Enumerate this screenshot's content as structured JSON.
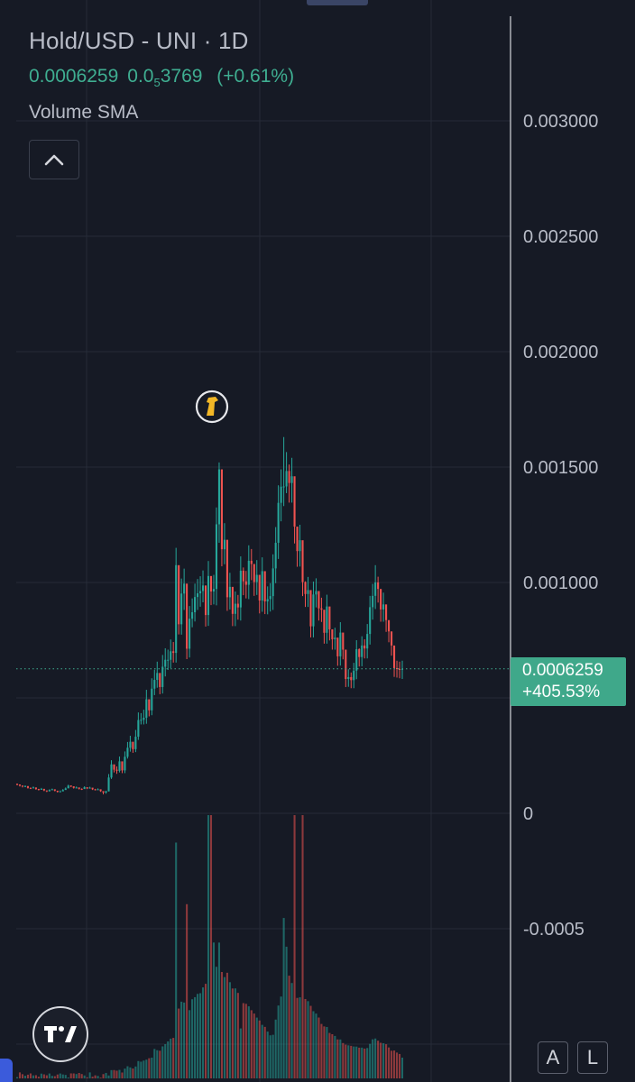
{
  "header": {
    "title": "Hold/USD - UNI · 1D",
    "price": "0.0006259",
    "change_main": "0.0",
    "change_sub": "5",
    "change_rest": "3769",
    "change_pct": "(+0.61%)",
    "indicator": "Volume SMA"
  },
  "price_tag": {
    "price": "0.0006259",
    "change": "+405.53%"
  },
  "buttons": {
    "auto": "A",
    "log": "L"
  },
  "colors": {
    "background": "#161a25",
    "up": "#26a69a",
    "down": "#ef5350",
    "text": "#b8bcc7",
    "accent": "#3fae91",
    "grid": "#262b38"
  },
  "icons": [
    "chevron-up-icon",
    "event-marker-icon",
    "tradingview-logo-icon"
  ],
  "chart_data": {
    "type": "candlestick",
    "title": "Hold/USD - UNI · 1D",
    "y_ticks": [
      {
        "value": 0.003,
        "label": "0.003000"
      },
      {
        "value": 0.0025,
        "label": "0.002500"
      },
      {
        "value": 0.002,
        "label": "0.002000"
      },
      {
        "value": 0.0015,
        "label": "0.001500"
      },
      {
        "value": 0.001,
        "label": "0.001000"
      },
      {
        "value": 0,
        "label": "0"
      },
      {
        "value": -0.0005,
        "label": "-0.0005"
      }
    ],
    "ylim": [
      -0.00103,
      0.00345
    ],
    "last_price": 0.0006259,
    "volume_max": 1,
    "series": [
      {
        "name": "Hold/USD",
        "close": [
          0.000125,
          0.00012,
          0.000116,
          0.000118,
          0.00011,
          0.000108,
          0.000112,
          0.000105,
          0.000102,
          0.000106,
          9.9e-05,
          9.5e-05,
          0.000101,
          0.000104,
          9.8e-05,
          9.3e-05,
          9.5e-05,
          0.000101,
          0.000108,
          0.00012,
          0.000117,
          0.00011,
          0.000112,
          0.000106,
          0.000105,
          0.000113,
          0.000108,
          0.000111,
          0.000104,
          0.000102,
          0.000104,
          9.6e-05,
          9e-05,
          9.5e-05,
          0.000155,
          0.000212,
          0.000189,
          0.000184,
          0.000225,
          0.000186,
          0.000245,
          0.000284,
          0.00031,
          0.000278,
          0.000332,
          0.000404,
          0.000405,
          0.000414,
          0.000494,
          0.000446,
          0.00054,
          0.000578,
          0.000608,
          0.000547,
          0.000635,
          0.000665,
          0.000665,
          0.000702,
          0.000695,
          0.001075,
          0.000819,
          0.000952,
          0.000995,
          0.000713,
          0.000843,
          0.000871,
          0.000937,
          0.000953,
          0.000963,
          0.000987,
          0.000859,
          0.001028,
          0.000961,
          0.000972,
          0.001252,
          0.00149,
          0.001144,
          0.001185,
          0.000936,
          0.000981,
          0.000864,
          0.000908,
          0.000892,
          0.001051,
          0.001005,
          0.00099,
          0.001094,
          0.00108,
          0.001002,
          0.001033,
          0.000922,
          0.001049,
          0.000918,
          0.000928,
          0.000941,
          0.001061,
          0.001172,
          0.001345,
          0.001415,
          0.001416,
          0.001483,
          0.001431,
          0.00146,
          0.001242,
          0.001136,
          0.001183,
          0.001002,
          0.00095,
          0.000967,
          0.00081,
          0.000948,
          0.000963,
          0.000888,
          0.000882,
          0.000782,
          0.000896,
          0.000797,
          0.000754,
          0.000761,
          0.00068,
          0.000783,
          0.000709,
          0.000582,
          0.00059,
          0.000577,
          0.000618,
          0.000711,
          0.000677,
          0.000727,
          0.000714,
          0.000777,
          0.000893,
          0.000942,
          0.001,
          0.000972,
          0.000883,
          0.000905,
          0.000837,
          0.000788,
          0.000727,
          0.000629,
          0.000625,
          0.000622,
          0.0006259
        ],
        "high": [
          0.000129,
          0.000124,
          0.00012,
          0.000121,
          0.000114,
          0.000112,
          0.000116,
          0.000109,
          0.000106,
          0.00011,
          0.000102,
          9.8e-05,
          0.000104,
          0.000107,
          0.000101,
          9.7e-05,
          9.9e-05,
          0.000105,
          0.000112,
          0.000124,
          0.000121,
          0.000114,
          0.000116,
          0.000109,
          0.000108,
          0.000117,
          0.000111,
          0.000115,
          0.000107,
          0.000106,
          0.000108,
          0.0001,
          9.5e-05,
          9.8e-05,
          0.00017,
          0.00023,
          0.000201,
          0.000203,
          0.000246,
          0.0002,
          0.000268,
          0.000309,
          0.000336,
          0.000302,
          0.000361,
          0.000437,
          0.000434,
          0.000449,
          0.000535,
          0.000479,
          0.000585,
          0.000622,
          0.000657,
          0.000584,
          0.000686,
          0.000715,
          0.000709,
          0.000753,
          0.000742,
          0.00115,
          0.000873,
          0.001017,
          0.00106,
          0.000763,
          0.000898,
          0.000931,
          0.000995,
          0.001015,
          0.001027,
          0.001052,
          0.000913,
          0.001093,
          0.001019,
          0.001033,
          0.001325,
          0.00152,
          0.001213,
          0.001257,
          0.000995,
          0.001042,
          0.000916,
          0.000961,
          0.000946,
          0.001113,
          0.001065,
          0.00105,
          0.001161,
          0.001145,
          0.001063,
          0.001097,
          0.000977,
          0.001109,
          0.000971,
          0.000983,
          0.000997,
          0.001122,
          0.00124,
          0.001421,
          0.00149,
          0.00163,
          0.001565,
          0.001511,
          0.00154,
          0.001314,
          0.001201,
          0.00125,
          0.001059,
          0.001005,
          0.001024,
          0.000857,
          0.001004,
          0.001018,
          0.000939,
          0.000934,
          0.000828,
          0.000947,
          0.000843,
          0.000797,
          0.000804,
          0.000719,
          0.000828,
          0.000749,
          0.000617,
          0.000624,
          0.00061,
          0.000652,
          0.00075,
          0.000715,
          0.000767,
          0.000754,
          0.00082,
          0.000942,
          0.000994,
          0.001075,
          0.001025,
          0.000932,
          0.000956,
          0.000884,
          0.000832,
          0.000768,
          0.000666,
          0.000661,
          0.000657,
          0.000661
        ],
        "low": [
          0.000121,
          0.000116,
          0.000112,
          0.000114,
          0.000107,
          0.000105,
          0.000108,
          0.000102,
          9.9e-05,
          0.000102,
          9.6e-05,
          9.2e-05,
          9.7e-05,
          0.000101,
          9.5e-05,
          9e-05,
          9.2e-05,
          9.8e-05,
          0.000104,
          0.000116,
          0.000113,
          0.000107,
          0.000108,
          0.000103,
          0.000101,
          0.00011,
          0.000105,
          0.000107,
          0.000101,
          9.9e-05,
          0.000101,
          9.3e-05,
          8.2e-05,
          8.5e-05,
          9.5e-05,
          0.000149,
          0.000177,
          0.000171,
          0.000177,
          0.000174,
          0.000174,
          0.000237,
          0.000267,
          0.000262,
          0.000265,
          0.000318,
          0.000385,
          0.000385,
          0.000388,
          0.00042,
          0.000425,
          0.000512,
          0.000544,
          0.000516,
          0.000519,
          0.000593,
          0.000621,
          0.000629,
          0.000653,
          0.000653,
          0.000775,
          0.000774,
          0.000881,
          0.000668,
          0.000675,
          0.000806,
          0.000831,
          0.000881,
          0.000895,
          0.000914,
          0.000809,
          0.000812,
          0.000902,
          0.000905,
          0.000901,
          0.001172,
          0.00107,
          0.001079,
          0.000877,
          0.000883,
          0.000811,
          0.000811,
          0.000839,
          0.000835,
          0.000945,
          0.000931,
          0.000928,
          0.00101,
          0.000942,
          0.000946,
          0.000866,
          0.000873,
          0.000863,
          0.000862,
          0.000874,
          0.000881,
          0.000997,
          0.001102,
          0.001265,
          0.001331,
          0.001387,
          0.001346,
          0.001346,
          0.001169,
          0.001068,
          0.001069,
          0.000941,
          0.000894,
          0.000894,
          0.000762,
          0.000762,
          0.000892,
          0.000835,
          0.000829,
          0.000735,
          0.000735,
          0.000749,
          0.000709,
          0.000709,
          0.000639,
          0.00064,
          0.000667,
          0.000547,
          0.000548,
          0.000542,
          0.000542,
          0.000581,
          0.000636,
          0.000637,
          0.000671,
          0.000671,
          0.000731,
          0.000839,
          0.000885,
          0.000913,
          0.00083,
          0.00083,
          0.000786,
          0.000741,
          0.000683,
          0.000591,
          0.000588,
          0.000585,
          0.000582
        ],
        "volume": [
          0.0049,
          0.0227,
          0.0159,
          0.0101,
          0.0141,
          0.0189,
          0.0114,
          0.0122,
          0.0064,
          0.0181,
          0.0153,
          0.0118,
          0.0186,
          0.0097,
          0.0084,
          0.0148,
          0.0186,
          0.0149,
          0.0132,
          0.0035,
          0.019,
          0.0189,
          0.0165,
          0.0205,
          0.0165,
          0.0111,
          0.0042,
          0.0227,
          0.0064,
          0.0116,
          0.0095,
          0.0027,
          0.0162,
          0.0207,
          0.011,
          0.0314,
          0.0316,
          0.0293,
          0.0323,
          0.0223,
          0.0371,
          0.0461,
          0.0417,
          0.0376,
          0.0452,
          0.0658,
          0.0635,
          0.0677,
          0.0712,
          0.0766,
          0.0788,
          0.1119,
          0.107,
          0.1051,
          0.1217,
          0.13,
          0.1405,
          0.1509,
          0.1539,
          0.8957,
          0.2652,
          0.2914,
          0.2881,
          0.6617,
          0.2592,
          0.3006,
          0.3085,
          0.321,
          0.3236,
          0.3456,
          0.3593,
          0.9999,
          0.9999,
          0.5161,
          0.4239,
          0.5159,
          0.4041,
          0.3848,
          0.4012,
          0.3654,
          0.3415,
          0.3418,
          0.3247,
          0.1898,
          0.2859,
          0.2832,
          0.2737,
          0.2589,
          0.2463,
          0.2309,
          0.2199,
          0.2033,
          0.1957,
          0.1778,
          0.1636,
          0.1656,
          0.2233,
          0.2768,
          0.3108,
          0.6093,
          0.5002,
          0.3901,
          0.3623,
          0.9999,
          0.3057,
          0.3079,
          0.9999,
          0.3015,
          0.2934,
          0.2755,
          0.2552,
          0.2462,
          0.2311,
          0.2068,
          0.1974,
          0.1953,
          0.1727,
          0.1678,
          0.1613,
          0.1481,
          0.1478,
          0.1343,
          0.1281,
          0.1255,
          0.1237,
          0.1212,
          0.1208,
          0.1167,
          0.1169,
          0.1132,
          0.1154,
          0.1311,
          0.1485,
          0.1515,
          0.1432,
          0.1353,
          0.1334,
          0.1298,
          0.1175,
          0.1051,
          0.106,
          0.0981,
          0.0927,
          0.0789
        ]
      }
    ]
  }
}
